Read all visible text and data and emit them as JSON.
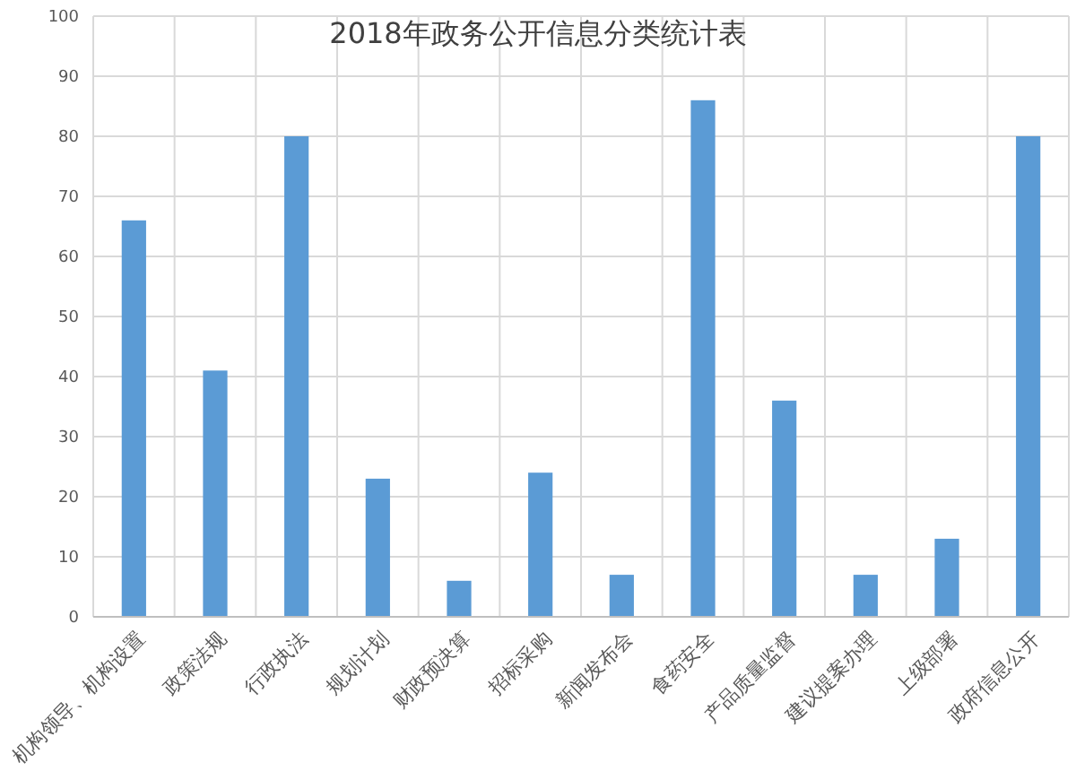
{
  "chart_data": {
    "type": "bar",
    "title": "2018年政务公开信息分类统计表",
    "categories": [
      "机构领导、机构设置",
      "政策法规",
      "行政执法",
      "规划计划",
      "财政预决算",
      "招标采购",
      "新闻发布会",
      "食药安全",
      "产品质量监督",
      "建议提案办理",
      "上级部署",
      "政府信息公开"
    ],
    "values": [
      66,
      41,
      80,
      23,
      6,
      24,
      7,
      86,
      36,
      7,
      13,
      80
    ],
    "color": "#5b9bd5",
    "ylim": [
      0,
      100
    ],
    "yticks": [
      0,
      10,
      20,
      30,
      40,
      50,
      60,
      70,
      80,
      90,
      100
    ],
    "grid": true
  }
}
